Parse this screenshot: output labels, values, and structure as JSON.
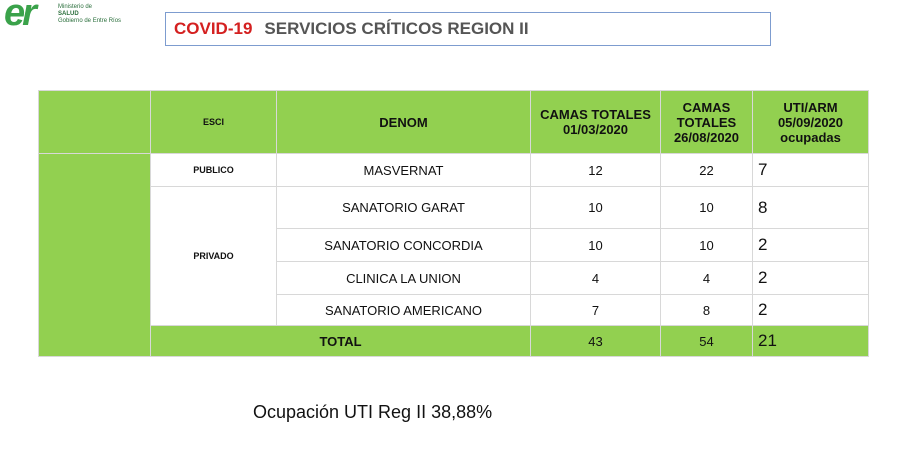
{
  "logo": {
    "mark": "er",
    "lines": [
      "Ministerio de",
      "SALUD",
      "Gobierno de Entre Ríos"
    ]
  },
  "header": {
    "tag": "COVID-19",
    "title": "SERVICIOS CRÍTICOS REGION II"
  },
  "table": {
    "columns": [
      "ESCI",
      "DENOM",
      "CAMAS TOTALES 01/03/2020",
      "CAMAS TOTALES 26/08/2020",
      "UTI/ARM 05/09/2020 ocupadas"
    ],
    "groups": [
      {
        "esci": "PUBLICO",
        "rows": [
          [
            "MASVERNAT",
            12,
            22,
            7
          ]
        ]
      },
      {
        "esci": "PRIVADO",
        "rows": [
          [
            "SANATORIO GARAT",
            10,
            10,
            8
          ],
          [
            "SANATORIO CONCORDIA",
            10,
            10,
            2
          ],
          [
            "CLINICA LA UNION",
            4,
            4,
            2
          ],
          [
            "SANATORIO AMERICANO",
            7,
            8,
            2
          ]
        ]
      }
    ],
    "total": {
      "label": "TOTAL",
      "values": [
        43,
        54,
        21
      ]
    }
  },
  "footer": {
    "text": "Ocupación UTI Reg II 38,88%"
  }
}
